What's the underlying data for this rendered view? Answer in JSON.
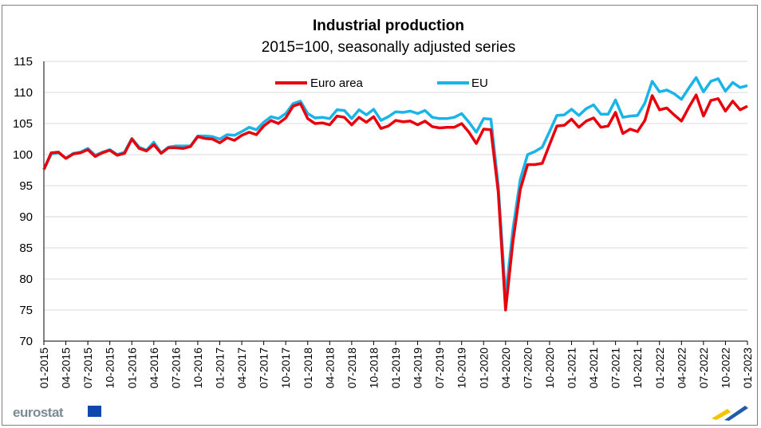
{
  "chart_data": {
    "type": "line",
    "title": "Industrial production",
    "subtitle": "2015=100, seasonally adjusted series",
    "xlabel": "",
    "ylabel": "",
    "ylim": [
      70,
      115
    ],
    "yticks": [
      70,
      75,
      80,
      85,
      90,
      95,
      100,
      105,
      110,
      115
    ],
    "x_tick_labels": [
      "01-2015",
      "04-2015",
      "07-2015",
      "10-2015",
      "01-2016",
      "04-2016",
      "07-2016",
      "10-2016",
      "01-2017",
      "04-2017",
      "07-2017",
      "10-2017",
      "01-2018",
      "04-2018",
      "07-2018",
      "10-2018",
      "01-2019",
      "04-2019",
      "07-2019",
      "10-2019",
      "01-2020",
      "04-2020",
      "07-2020",
      "10-2020",
      "01-2021",
      "04-2021",
      "07-2021",
      "10-2021",
      "01-2022",
      "04-2022",
      "07-2022",
      "10-2022",
      "01-2023"
    ],
    "legend_position": "top-center",
    "series": [
      {
        "name": "Euro area",
        "color": "#e8000b",
        "values": [
          97.6,
          100.3,
          100.4,
          99.4,
          100.1,
          100.3,
          100.8,
          99.7,
          100.3,
          100.7,
          99.9,
          100.2,
          102.5,
          101.0,
          100.6,
          101.6,
          100.2,
          101.1,
          101.1,
          101.0,
          101.3,
          102.9,
          102.6,
          102.5,
          101.9,
          102.7,
          102.3,
          103.1,
          103.6,
          103.2,
          104.6,
          105.5,
          105.0,
          105.9,
          107.8,
          108.2,
          105.8,
          105.0,
          105.1,
          104.8,
          106.2,
          106.0,
          104.8,
          106.0,
          105.2,
          106.1,
          104.2,
          104.6,
          105.5,
          105.3,
          105.4,
          104.8,
          105.4,
          104.5,
          104.3,
          104.4,
          104.4,
          105.0,
          103.6,
          101.8,
          104.1,
          104.0,
          94.0,
          75.0,
          86.0,
          94.4,
          98.4,
          98.4,
          98.6,
          101.6,
          104.6,
          104.7,
          105.7,
          104.4,
          105.4,
          105.9,
          104.4,
          104.6,
          106.8,
          103.4,
          104.1,
          103.7,
          105.5,
          109.5,
          107.2,
          107.5,
          106.4,
          105.4,
          107.6,
          109.6,
          106.2,
          108.7,
          109.0,
          107.0,
          108.6,
          107.2,
          107.8
        ]
      },
      {
        "name": "EU",
        "color": "#1ab4e8",
        "values": [
          97.6,
          100.1,
          100.3,
          99.4,
          100.2,
          100.4,
          101.0,
          99.9,
          100.4,
          100.8,
          100.0,
          100.4,
          102.6,
          101.2,
          100.7,
          102.0,
          100.3,
          101.2,
          101.4,
          101.4,
          101.4,
          103.0,
          103.0,
          102.9,
          102.5,
          103.2,
          103.1,
          103.7,
          104.4,
          104.0,
          105.2,
          106.1,
          105.8,
          106.6,
          108.2,
          108.6,
          106.6,
          105.9,
          106.0,
          105.8,
          107.2,
          107.1,
          105.8,
          107.2,
          106.4,
          107.3,
          105.5,
          106.1,
          106.9,
          106.8,
          107.0,
          106.6,
          107.1,
          106.0,
          105.8,
          105.8,
          106.0,
          106.6,
          105.2,
          103.6,
          105.8,
          105.7,
          95.0,
          77.2,
          88.0,
          96.0,
          100.0,
          100.5,
          101.2,
          103.7,
          106.3,
          106.4,
          107.3,
          106.3,
          107.4,
          108.0,
          106.5,
          106.5,
          108.8,
          106.0,
          106.2,
          106.3,
          108.3,
          111.8,
          110.1,
          110.4,
          109.8,
          108.9,
          110.7,
          112.4,
          110.1,
          111.8,
          112.2,
          110.2,
          111.6,
          110.8,
          111.1
        ]
      }
    ]
  },
  "logo_text": "eurostat"
}
